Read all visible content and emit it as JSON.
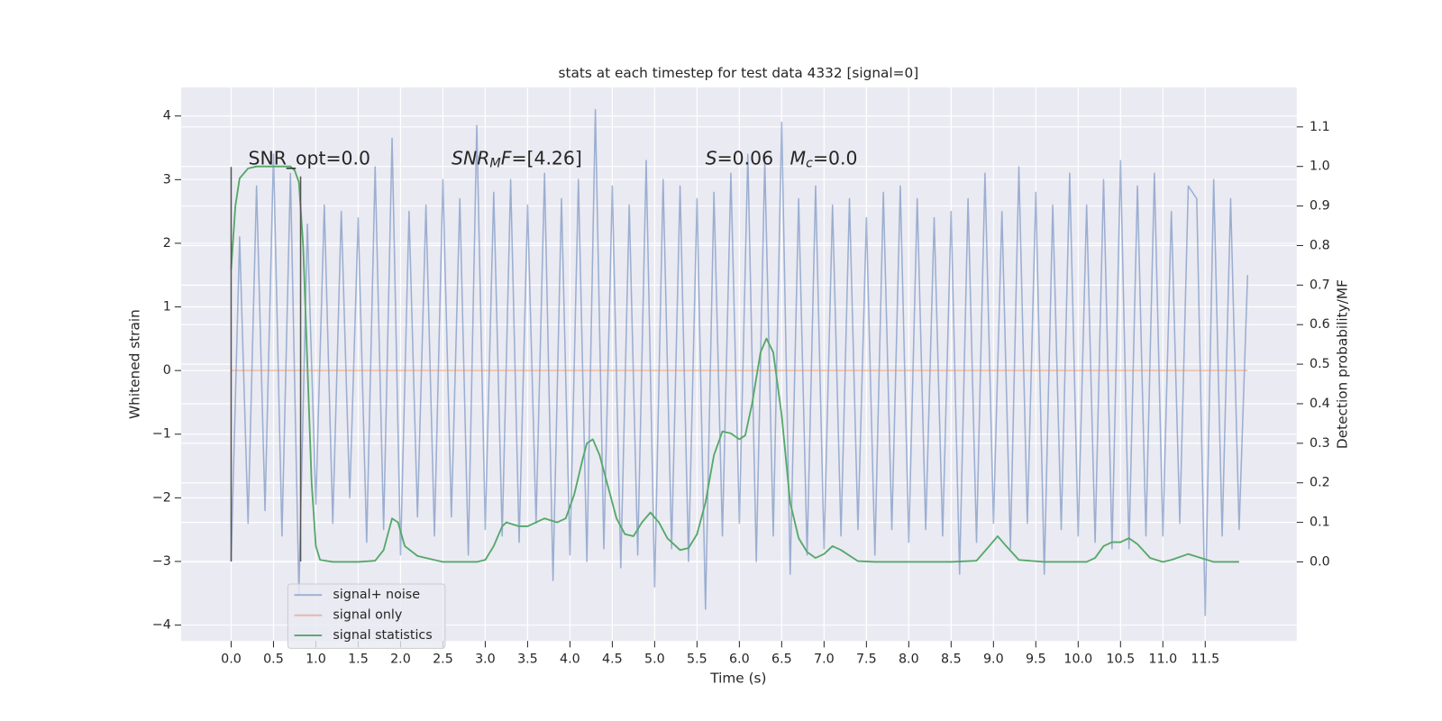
{
  "chart_data": {
    "type": "line",
    "title": "stats at each timestep for test data 4332 [signal=0]",
    "xlabel": "Time (s)",
    "ylabel": "Whitened strain",
    "y2label": "Detection probability/MF",
    "xlim": [
      -0.59,
      12.58
    ],
    "ylim": [
      -4.25,
      4.45
    ],
    "y2lim": [
      -0.2,
      1.2
    ],
    "xticks": [
      {
        "value": 0,
        "label": "0.0"
      },
      {
        "value": 0.5,
        "label": "0.5"
      },
      {
        "value": 1,
        "label": "1.0"
      },
      {
        "value": 1.5,
        "label": "1.5"
      },
      {
        "value": 2,
        "label": "2.0"
      },
      {
        "value": 2.5,
        "label": "2.5"
      },
      {
        "value": 3,
        "label": "3.0"
      },
      {
        "value": 3.5,
        "label": "3.5"
      },
      {
        "value": 4,
        "label": "4.0"
      },
      {
        "value": 4.5,
        "label": "4.5"
      },
      {
        "value": 5,
        "label": "5.0"
      },
      {
        "value": 5.5,
        "label": "5.5"
      },
      {
        "value": 6,
        "label": "6.0"
      },
      {
        "value": 6.5,
        "label": "6.5"
      },
      {
        "value": 7,
        "label": "7.0"
      },
      {
        "value": 7.5,
        "label": "7.5"
      },
      {
        "value": 8,
        "label": "8.0"
      },
      {
        "value": 8.5,
        "label": "8.5"
      },
      {
        "value": 9,
        "label": "9.0"
      },
      {
        "value": 9.5,
        "label": "9.5"
      },
      {
        "value": 10,
        "label": "10.0"
      },
      {
        "value": 10.5,
        "label": "10.5"
      },
      {
        "value": 11,
        "label": "11.0"
      },
      {
        "value": 11.5,
        "label": "11.5"
      }
    ],
    "yticks": [
      {
        "value": -4,
        "label": "−4"
      },
      {
        "value": -3,
        "label": "−3"
      },
      {
        "value": -2,
        "label": "−2"
      },
      {
        "value": -1,
        "label": "−1"
      },
      0,
      1,
      2,
      3,
      4
    ],
    "y2ticks": [
      {
        "value": 0,
        "label": "0.0"
      },
      {
        "value": 0.1,
        "label": "0.1"
      },
      {
        "value": 0.2,
        "label": "0.2"
      },
      {
        "value": 0.3,
        "label": "0.3"
      },
      {
        "value": 0.4,
        "label": "0.4"
      },
      {
        "value": 0.5,
        "label": "0.5"
      },
      {
        "value": 0.6,
        "label": "0.6"
      },
      {
        "value": 0.7,
        "label": "0.7"
      },
      {
        "value": 0.8,
        "label": "0.8"
      },
      {
        "value": 0.9,
        "label": "0.9"
      },
      {
        "value": 1.0,
        "label": "1.0"
      },
      {
        "value": 1.1,
        "label": "1.1"
      }
    ],
    "grid": true,
    "legend": "lower left",
    "series": [
      {
        "name": "signal+ noise",
        "color": "#4c72b0",
        "opacity": 0.5,
        "x": [
          0,
          0.1,
          0.2,
          0.3,
          0.4,
          0.5,
          0.6,
          0.7,
          0.8,
          0.9,
          1,
          1.1,
          1.2,
          1.3,
          1.4,
          1.5,
          1.6,
          1.7,
          1.8,
          1.9,
          2,
          2.1,
          2.2,
          2.3,
          2.4,
          2.5,
          2.6,
          2.7,
          2.8,
          2.9,
          3,
          3.1,
          3.2,
          3.3,
          3.4,
          3.5,
          3.6,
          3.7,
          3.8,
          3.9,
          4,
          4.1,
          4.2,
          4.3,
          4.4,
          4.5,
          4.6,
          4.7,
          4.8,
          4.9,
          5,
          5.1,
          5.2,
          5.3,
          5.4,
          5.5,
          5.6,
          5.7,
          5.8,
          5.9,
          6,
          6.1,
          6.2,
          6.3,
          6.4,
          6.5,
          6.6,
          6.7,
          6.8,
          6.9,
          7,
          7.1,
          7.2,
          7.3,
          7.4,
          7.5,
          7.6,
          7.7,
          7.8,
          7.9,
          8,
          8.1,
          8.2,
          8.3,
          8.4,
          8.5,
          8.6,
          8.7,
          8.8,
          8.9,
          9,
          9.1,
          9.2,
          9.3,
          9.4,
          9.5,
          9.6,
          9.7,
          9.8,
          9.9,
          10,
          10.1,
          10.2,
          10.3,
          10.4,
          10.5,
          10.6,
          10.7,
          10.8,
          10.9,
          11,
          11.1,
          11.2,
          11.3,
          11.4,
          11.5,
          11.6,
          11.7,
          11.8,
          11.9,
          12
        ],
        "values": [
          -3.0,
          2.1,
          -2.4,
          2.9,
          -2.2,
          3.4,
          -2.6,
          3.1,
          -3.5,
          2.3,
          -2.1,
          2.6,
          -2.4,
          2.5,
          -2.0,
          2.4,
          -2.7,
          3.2,
          -2.5,
          3.65,
          -2.9,
          2.5,
          -2.3,
          2.6,
          -2.6,
          3.0,
          -2.3,
          2.7,
          -2.9,
          3.85,
          -2.5,
          2.8,
          -2.6,
          3.0,
          -2.7,
          2.6,
          -2.4,
          3.1,
          -3.3,
          2.7,
          -2.9,
          3.0,
          -3.0,
          4.1,
          -2.8,
          2.9,
          -3.1,
          2.6,
          -2.9,
          3.3,
          -3.4,
          3.0,
          -2.8,
          2.9,
          -3.0,
          2.7,
          -3.75,
          2.8,
          -2.6,
          3.1,
          -2.4,
          3.4,
          -3.0,
          3.3,
          -2.6,
          3.9,
          -3.2,
          2.7,
          -2.9,
          2.9,
          -2.8,
          2.6,
          -2.6,
          2.7,
          -2.5,
          2.4,
          -2.9,
          2.8,
          -2.5,
          2.9,
          -2.7,
          2.7,
          -2.5,
          2.4,
          -2.6,
          2.5,
          -3.2,
          2.7,
          -2.7,
          3.1,
          -2.4,
          2.5,
          -2.8,
          3.2,
          -2.4,
          2.8,
          -3.2,
          2.6,
          -2.5,
          3.1,
          -2.6,
          2.6,
          -2.7,
          3.0,
          -2.8,
          3.3,
          -2.8,
          2.9,
          -2.6,
          3.1,
          -2.6,
          2.5,
          -2.4,
          2.9,
          2.7,
          -3.85,
          3.0,
          -2.6,
          2.7,
          -2.5,
          1.5
        ]
      },
      {
        "name": "signal only",
        "color": "#dd8452",
        "opacity": 0.5,
        "x": [
          0,
          12
        ],
        "values": [
          0,
          0
        ]
      },
      {
        "name": "signal statistics",
        "color": "#55a868",
        "opacity": 1,
        "axis": "y2",
        "x": [
          0,
          0.05,
          0.1,
          0.2,
          0.3,
          0.5,
          0.7,
          0.75,
          0.8,
          0.85,
          0.9,
          0.95,
          1.0,
          1.05,
          1.2,
          1.5,
          1.7,
          1.8,
          1.9,
          1.97,
          2.05,
          2.2,
          2.5,
          2.9,
          3.0,
          3.1,
          3.2,
          3.25,
          3.4,
          3.5,
          3.7,
          3.85,
          3.95,
          4.05,
          4.15,
          4.2,
          4.27,
          4.35,
          4.45,
          4.55,
          4.65,
          4.75,
          4.85,
          4.95,
          5.05,
          5.15,
          5.3,
          5.4,
          5.5,
          5.6,
          5.7,
          5.8,
          5.9,
          6.0,
          6.07,
          6.15,
          6.25,
          6.32,
          6.4,
          6.5,
          6.6,
          6.7,
          6.8,
          6.9,
          7.0,
          7.1,
          7.2,
          7.4,
          7.6,
          8.5,
          8.8,
          8.95,
          9.05,
          9.15,
          9.3,
          9.6,
          10.1,
          10.2,
          10.3,
          10.4,
          10.5,
          10.6,
          10.7,
          10.85,
          11.0,
          11.1,
          11.3,
          11.45,
          11.6,
          11.9
        ],
        "values": [
          0.74,
          0.9,
          0.97,
          0.995,
          1.0,
          1.0,
          1.0,
          0.99,
          0.96,
          0.8,
          0.5,
          0.2,
          0.04,
          0.005,
          0.0,
          0.0,
          0.003,
          0.03,
          0.11,
          0.1,
          0.04,
          0.015,
          0.0,
          0.0,
          0.005,
          0.04,
          0.09,
          0.1,
          0.09,
          0.09,
          0.11,
          0.1,
          0.11,
          0.17,
          0.26,
          0.3,
          0.31,
          0.27,
          0.19,
          0.11,
          0.07,
          0.065,
          0.1,
          0.125,
          0.1,
          0.06,
          0.03,
          0.035,
          0.07,
          0.15,
          0.27,
          0.33,
          0.325,
          0.31,
          0.32,
          0.4,
          0.53,
          0.565,
          0.53,
          0.37,
          0.15,
          0.06,
          0.025,
          0.01,
          0.02,
          0.04,
          0.03,
          0.002,
          0.0,
          0.0,
          0.003,
          0.04,
          0.065,
          0.04,
          0.005,
          0.0,
          0.0,
          0.01,
          0.04,
          0.05,
          0.05,
          0.06,
          0.045,
          0.01,
          0.0,
          0.005,
          0.02,
          0.01,
          0.0,
          0.0
        ]
      }
    ],
    "vlines": [
      {
        "x": 0,
        "ymin": -3,
        "ymax": 3.2,
        "color": "#555555"
      },
      {
        "x": 0.82,
        "ymin": -3,
        "ymax": 3.05,
        "color": "#555555"
      }
    ],
    "annotations": [
      {
        "parts": [
          {
            "text": "SNR_opt=0.0"
          }
        ]
      },
      {
        "parts": [
          {
            "text": "SNR",
            "style": "italic"
          },
          {
            "text": "M",
            "style": "italic-sub"
          },
          {
            "text": "F",
            "style": "italic"
          },
          {
            "text": "=[4.26]"
          }
        ]
      },
      {
        "parts": [
          {
            "text": "S",
            "style": "italic"
          },
          {
            "text": "=0.06"
          }
        ]
      },
      {
        "parts": [
          {
            "text": "M",
            "style": "italic"
          },
          {
            "text": "c",
            "style": "italic-sub"
          },
          {
            "text": "=0.0"
          }
        ]
      }
    ]
  }
}
